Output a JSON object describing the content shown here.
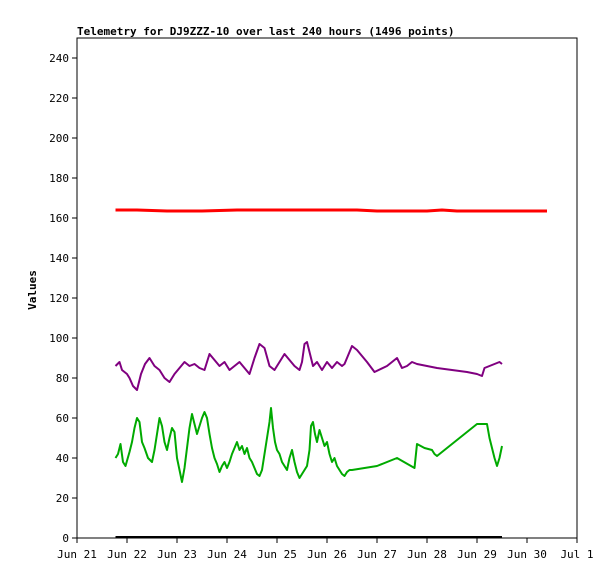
{
  "chart_data": {
    "type": "line",
    "title": "Telemetry for DJ9ZZZ-10 over last 240 hours (1496 points)",
    "xlabel": "",
    "ylabel": "Values",
    "xlim": [
      0,
      10
    ],
    "ylim": [
      0,
      250
    ],
    "x_ticks": [
      {
        "x": 0,
        "label": "Jun 21"
      },
      {
        "x": 1,
        "label": "Jun 22"
      },
      {
        "x": 2,
        "label": "Jun 23"
      },
      {
        "x": 3,
        "label": "Jun 24"
      },
      {
        "x": 4,
        "label": "Jun 25"
      },
      {
        "x": 5,
        "label": "Jun 26"
      },
      {
        "x": 6,
        "label": "Jun 27"
      },
      {
        "x": 7,
        "label": "Jun 28"
      },
      {
        "x": 8,
        "label": "Jun 29"
      },
      {
        "x": 9,
        "label": "Jun 30"
      },
      {
        "x": 10,
        "label": "Jul 1"
      }
    ],
    "y_ticks": [
      0,
      20,
      40,
      60,
      80,
      100,
      120,
      140,
      160,
      180,
      200,
      220,
      240
    ],
    "grid": false,
    "series": [
      {
        "color": "#ff0000",
        "points": [
          [
            0.77,
            164
          ],
          [
            1.2,
            164
          ],
          [
            1.8,
            163.5
          ],
          [
            2.5,
            163.5
          ],
          [
            3.2,
            164
          ],
          [
            4.2,
            164
          ],
          [
            5.0,
            164
          ],
          [
            5.6,
            164
          ],
          [
            6.0,
            163.5
          ],
          [
            7.0,
            163.5
          ],
          [
            7.3,
            164
          ],
          [
            7.6,
            163.5
          ],
          [
            8.5,
            163.5
          ],
          [
            9.0,
            163.5
          ],
          [
            9.4,
            163.5
          ]
        ]
      },
      {
        "color": "#800080",
        "points": [
          [
            0.77,
            86
          ],
          [
            0.85,
            88
          ],
          [
            0.9,
            84
          ],
          [
            1.0,
            82
          ],
          [
            1.05,
            80
          ],
          [
            1.12,
            76
          ],
          [
            1.2,
            74
          ],
          [
            1.28,
            82
          ],
          [
            1.36,
            87
          ],
          [
            1.45,
            90
          ],
          [
            1.55,
            86
          ],
          [
            1.65,
            84
          ],
          [
            1.75,
            80
          ],
          [
            1.85,
            78
          ],
          [
            1.95,
            82
          ],
          [
            2.05,
            85
          ],
          [
            2.15,
            88
          ],
          [
            2.25,
            86
          ],
          [
            2.35,
            87
          ],
          [
            2.45,
            85
          ],
          [
            2.55,
            84
          ],
          [
            2.65,
            92
          ],
          [
            2.75,
            89
          ],
          [
            2.85,
            86
          ],
          [
            2.95,
            88
          ],
          [
            3.05,
            84
          ],
          [
            3.15,
            86
          ],
          [
            3.25,
            88
          ],
          [
            3.35,
            85
          ],
          [
            3.45,
            82
          ],
          [
            3.55,
            90
          ],
          [
            3.65,
            97
          ],
          [
            3.75,
            95
          ],
          [
            3.85,
            86
          ],
          [
            3.95,
            84
          ],
          [
            4.05,
            88
          ],
          [
            4.15,
            92
          ],
          [
            4.25,
            89
          ],
          [
            4.35,
            86
          ],
          [
            4.45,
            84
          ],
          [
            4.5,
            88
          ],
          [
            4.55,
            97
          ],
          [
            4.6,
            98
          ],
          [
            4.65,
            93
          ],
          [
            4.72,
            86
          ],
          [
            4.8,
            88
          ],
          [
            4.9,
            84
          ],
          [
            5.0,
            88
          ],
          [
            5.1,
            85
          ],
          [
            5.2,
            88
          ],
          [
            5.3,
            86
          ],
          [
            5.35,
            87
          ],
          [
            5.4,
            90
          ],
          [
            5.5,
            96
          ],
          [
            5.6,
            94
          ],
          [
            5.8,
            88
          ],
          [
            5.95,
            83
          ],
          [
            6.2,
            86
          ],
          [
            6.4,
            90
          ],
          [
            6.5,
            85
          ],
          [
            6.6,
            86
          ],
          [
            6.7,
            88
          ],
          [
            6.8,
            87
          ],
          [
            7.0,
            86
          ],
          [
            7.2,
            85
          ],
          [
            7.5,
            84
          ],
          [
            7.8,
            83
          ],
          [
            8.0,
            82
          ],
          [
            8.1,
            81
          ],
          [
            8.15,
            85
          ],
          [
            8.25,
            86
          ],
          [
            8.35,
            87
          ],
          [
            8.45,
            88
          ],
          [
            8.5,
            87
          ]
        ]
      },
      {
        "color": "#00aa00",
        "points": [
          [
            0.77,
            40
          ],
          [
            0.82,
            42
          ],
          [
            0.87,
            47
          ],
          [
            0.92,
            38
          ],
          [
            0.97,
            36
          ],
          [
            1.05,
            43
          ],
          [
            1.1,
            48
          ],
          [
            1.15,
            55
          ],
          [
            1.2,
            60
          ],
          [
            1.25,
            58
          ],
          [
            1.3,
            48
          ],
          [
            1.35,
            45
          ],
          [
            1.42,
            40
          ],
          [
            1.5,
            38
          ],
          [
            1.55,
            44
          ],
          [
            1.6,
            52
          ],
          [
            1.65,
            60
          ],
          [
            1.7,
            56
          ],
          [
            1.75,
            48
          ],
          [
            1.8,
            44
          ],
          [
            1.85,
            50
          ],
          [
            1.9,
            55
          ],
          [
            1.95,
            53
          ],
          [
            2.0,
            40
          ],
          [
            2.05,
            34
          ],
          [
            2.1,
            28
          ],
          [
            2.15,
            35
          ],
          [
            2.2,
            45
          ],
          [
            2.25,
            55
          ],
          [
            2.3,
            62
          ],
          [
            2.35,
            57
          ],
          [
            2.4,
            52
          ],
          [
            2.45,
            56
          ],
          [
            2.5,
            60
          ],
          [
            2.55,
            63
          ],
          [
            2.6,
            60
          ],
          [
            2.65,
            52
          ],
          [
            2.7,
            45
          ],
          [
            2.75,
            40
          ],
          [
            2.8,
            37
          ],
          [
            2.85,
            33
          ],
          [
            2.9,
            36
          ],
          [
            2.95,
            38
          ],
          [
            3.0,
            35
          ],
          [
            3.05,
            38
          ],
          [
            3.1,
            42
          ],
          [
            3.15,
            45
          ],
          [
            3.2,
            48
          ],
          [
            3.25,
            44
          ],
          [
            3.3,
            46
          ],
          [
            3.35,
            42
          ],
          [
            3.4,
            45
          ],
          [
            3.45,
            40
          ],
          [
            3.5,
            38
          ],
          [
            3.55,
            35
          ],
          [
            3.6,
            32
          ],
          [
            3.65,
            31
          ],
          [
            3.7,
            34
          ],
          [
            3.75,
            42
          ],
          [
            3.8,
            50
          ],
          [
            3.85,
            58
          ],
          [
            3.88,
            65
          ],
          [
            3.92,
            55
          ],
          [
            3.96,
            48
          ],
          [
            4.0,
            44
          ],
          [
            4.05,
            42
          ],
          [
            4.1,
            38
          ],
          [
            4.15,
            36
          ],
          [
            4.2,
            34
          ],
          [
            4.25,
            40
          ],
          [
            4.3,
            44
          ],
          [
            4.35,
            38
          ],
          [
            4.4,
            33
          ],
          [
            4.45,
            30
          ],
          [
            4.5,
            32
          ],
          [
            4.55,
            34
          ],
          [
            4.6,
            36
          ],
          [
            4.65,
            44
          ],
          [
            4.68,
            56
          ],
          [
            4.72,
            58
          ],
          [
            4.76,
            52
          ],
          [
            4.8,
            48
          ],
          [
            4.85,
            54
          ],
          [
            4.9,
            50
          ],
          [
            4.95,
            46
          ],
          [
            5.0,
            48
          ],
          [
            5.05,
            42
          ],
          [
            5.1,
            38
          ],
          [
            5.15,
            40
          ],
          [
            5.2,
            36
          ],
          [
            5.25,
            34
          ],
          [
            5.3,
            32
          ],
          [
            5.35,
            31
          ],
          [
            5.4,
            33
          ],
          [
            5.45,
            34
          ],
          [
            5.5,
            34
          ],
          [
            6.0,
            36
          ],
          [
            6.4,
            40
          ],
          [
            6.75,
            35
          ],
          [
            6.8,
            47
          ],
          [
            6.95,
            45
          ],
          [
            7.1,
            44
          ],
          [
            7.15,
            42
          ],
          [
            7.2,
            41
          ],
          [
            8.0,
            57
          ],
          [
            8.2,
            57
          ],
          [
            8.25,
            50
          ],
          [
            8.3,
            45
          ],
          [
            8.35,
            40
          ],
          [
            8.4,
            36
          ],
          [
            8.45,
            40
          ],
          [
            8.5,
            46
          ]
        ]
      },
      {
        "color": "#000000",
        "points": [
          [
            0.77,
            0.5
          ],
          [
            8.5,
            0.5
          ]
        ]
      }
    ]
  }
}
